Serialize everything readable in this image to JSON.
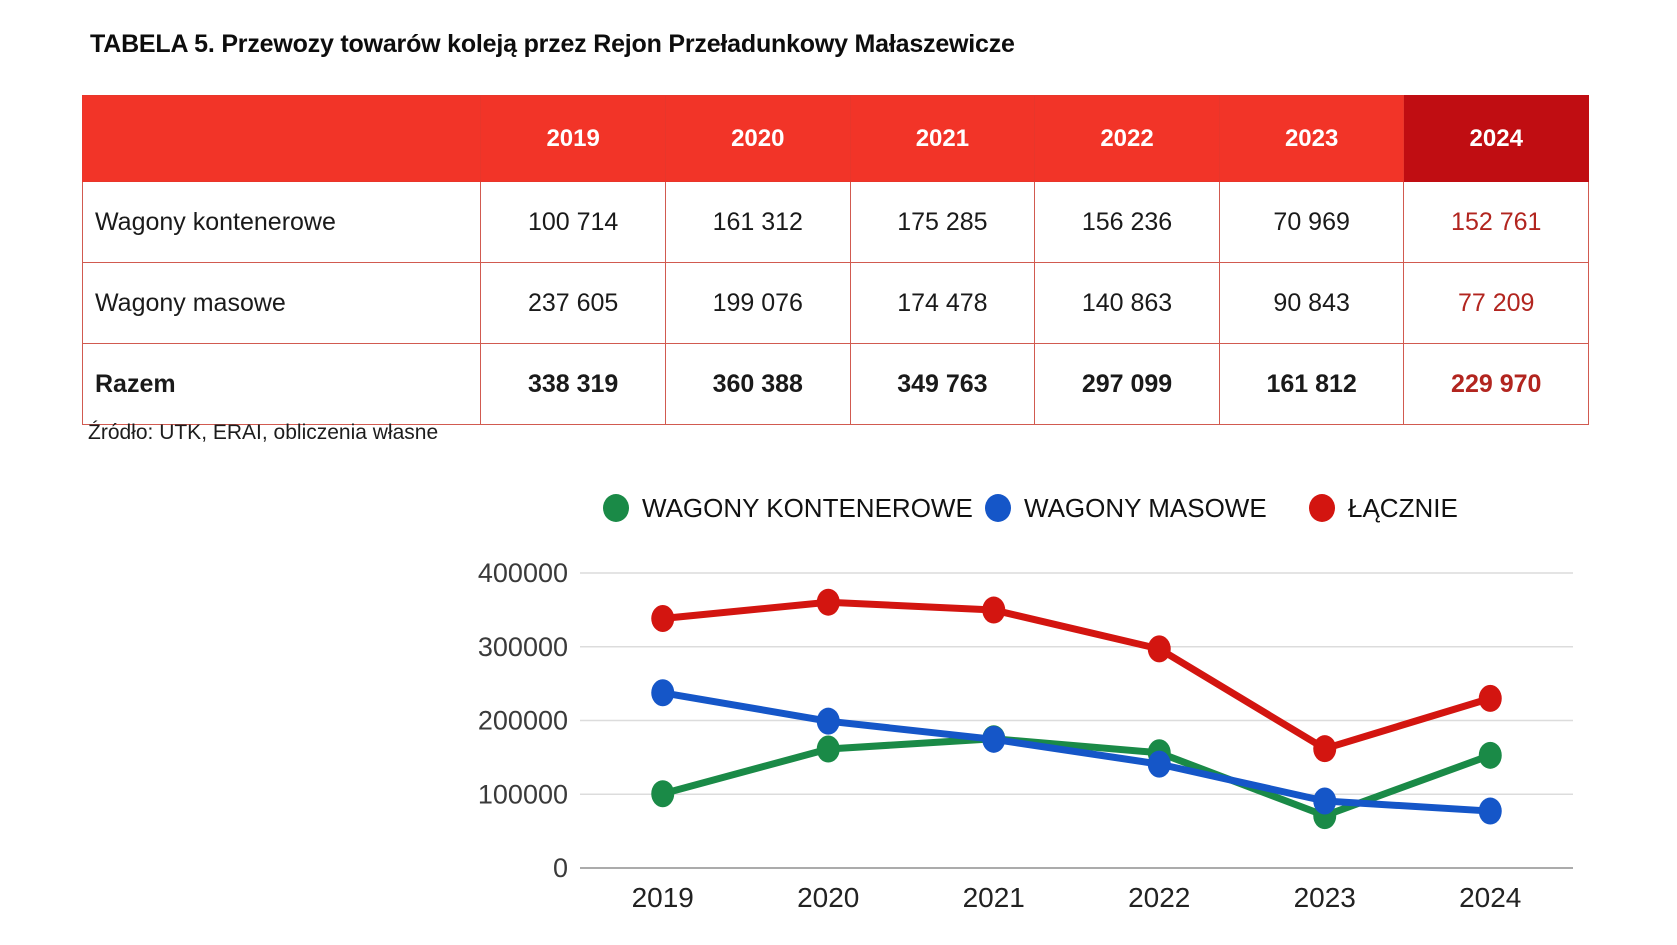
{
  "title": "TABELA 5. Przewozy towarów koleją przez Rejon Przeładunkowy Małaszewicze",
  "source_note": "Źródło: UTK, ERAI, obliczenia własne",
  "colors": {
    "header_red": "#f23428",
    "header_dark_red": "#c00d12",
    "table_border_red": "#d15a50",
    "highlight_text_red": "#b2251f",
    "series_green": "#1a8a47",
    "series_blue": "#1556c8",
    "series_red": "#d31510",
    "gridline": "#dcdcdc",
    "baseline": "#ababab",
    "tick_text": "#3a3a3a",
    "xlabel_text": "#222222"
  },
  "table": {
    "corner_label": "",
    "columns": [
      "2019",
      "2020",
      "2021",
      "2022",
      "2023",
      "2024"
    ],
    "rows": [
      {
        "label": "Wagony kontenerowe",
        "values": [
          "100 714",
          "161 312",
          "175 285",
          "156 236",
          "70 969",
          "152 761"
        ],
        "bold": false
      },
      {
        "label": "Wagony masowe",
        "values": [
          "237 605",
          "199 076",
          "174 478",
          "140 863",
          "90 843",
          "77 209"
        ],
        "bold": false
      },
      {
        "label": "Razem",
        "values": [
          "338 319",
          "360 388",
          "349 763",
          "297 099",
          "161 812",
          "229 970"
        ],
        "bold": true
      }
    ]
  },
  "chart_data": {
    "type": "line",
    "categories": [
      "2019",
      "2020",
      "2021",
      "2022",
      "2023",
      "2024"
    ],
    "series": [
      {
        "name": "WAGONY KONTENEROWE",
        "color": "#1a8a47",
        "values": [
          100714,
          161312,
          175285,
          156236,
          70969,
          152761
        ]
      },
      {
        "name": "WAGONY MASOWE",
        "color": "#1556c8",
        "values": [
          237605,
          199076,
          174478,
          140863,
          90843,
          77209
        ]
      },
      {
        "name": "ŁĄCZNIE",
        "color": "#d31510",
        "values": [
          338319,
          360388,
          349763,
          297099,
          161812,
          229970
        ]
      }
    ],
    "title": "",
    "xlabel": "",
    "ylabel": "",
    "ylim": [
      0,
      400000
    ],
    "yticks": [
      0,
      100000,
      200000,
      300000,
      400000
    ],
    "grid": "horizontal",
    "legend_position": "top",
    "marker": "circle"
  }
}
